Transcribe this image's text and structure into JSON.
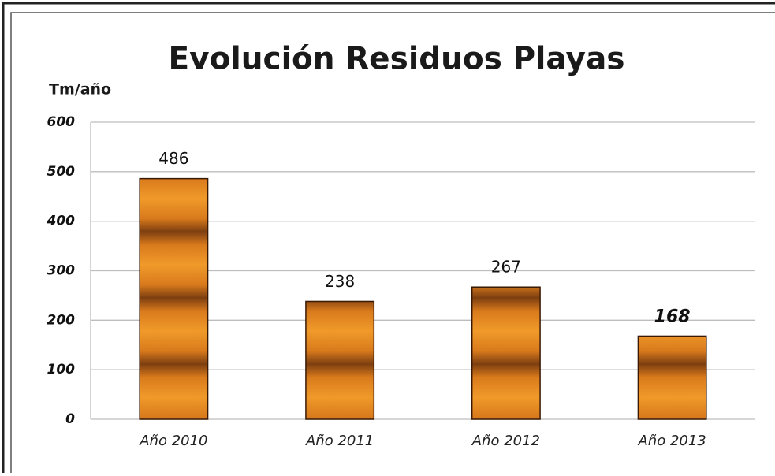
{
  "chart_data": {
    "type": "bar",
    "title": "Evolución Residuos Playas",
    "y_label": "Tm/año",
    "categories": [
      "Año 2010",
      "Año 2011",
      "Año 2012",
      "Año 2013"
    ],
    "values": [
      486,
      238,
      267,
      168
    ],
    "color": "#d9771a",
    "ylim": [
      0,
      600
    ],
    "yticks": [
      0,
      100,
      200,
      300,
      400,
      500,
      600
    ],
    "grid": true
  }
}
